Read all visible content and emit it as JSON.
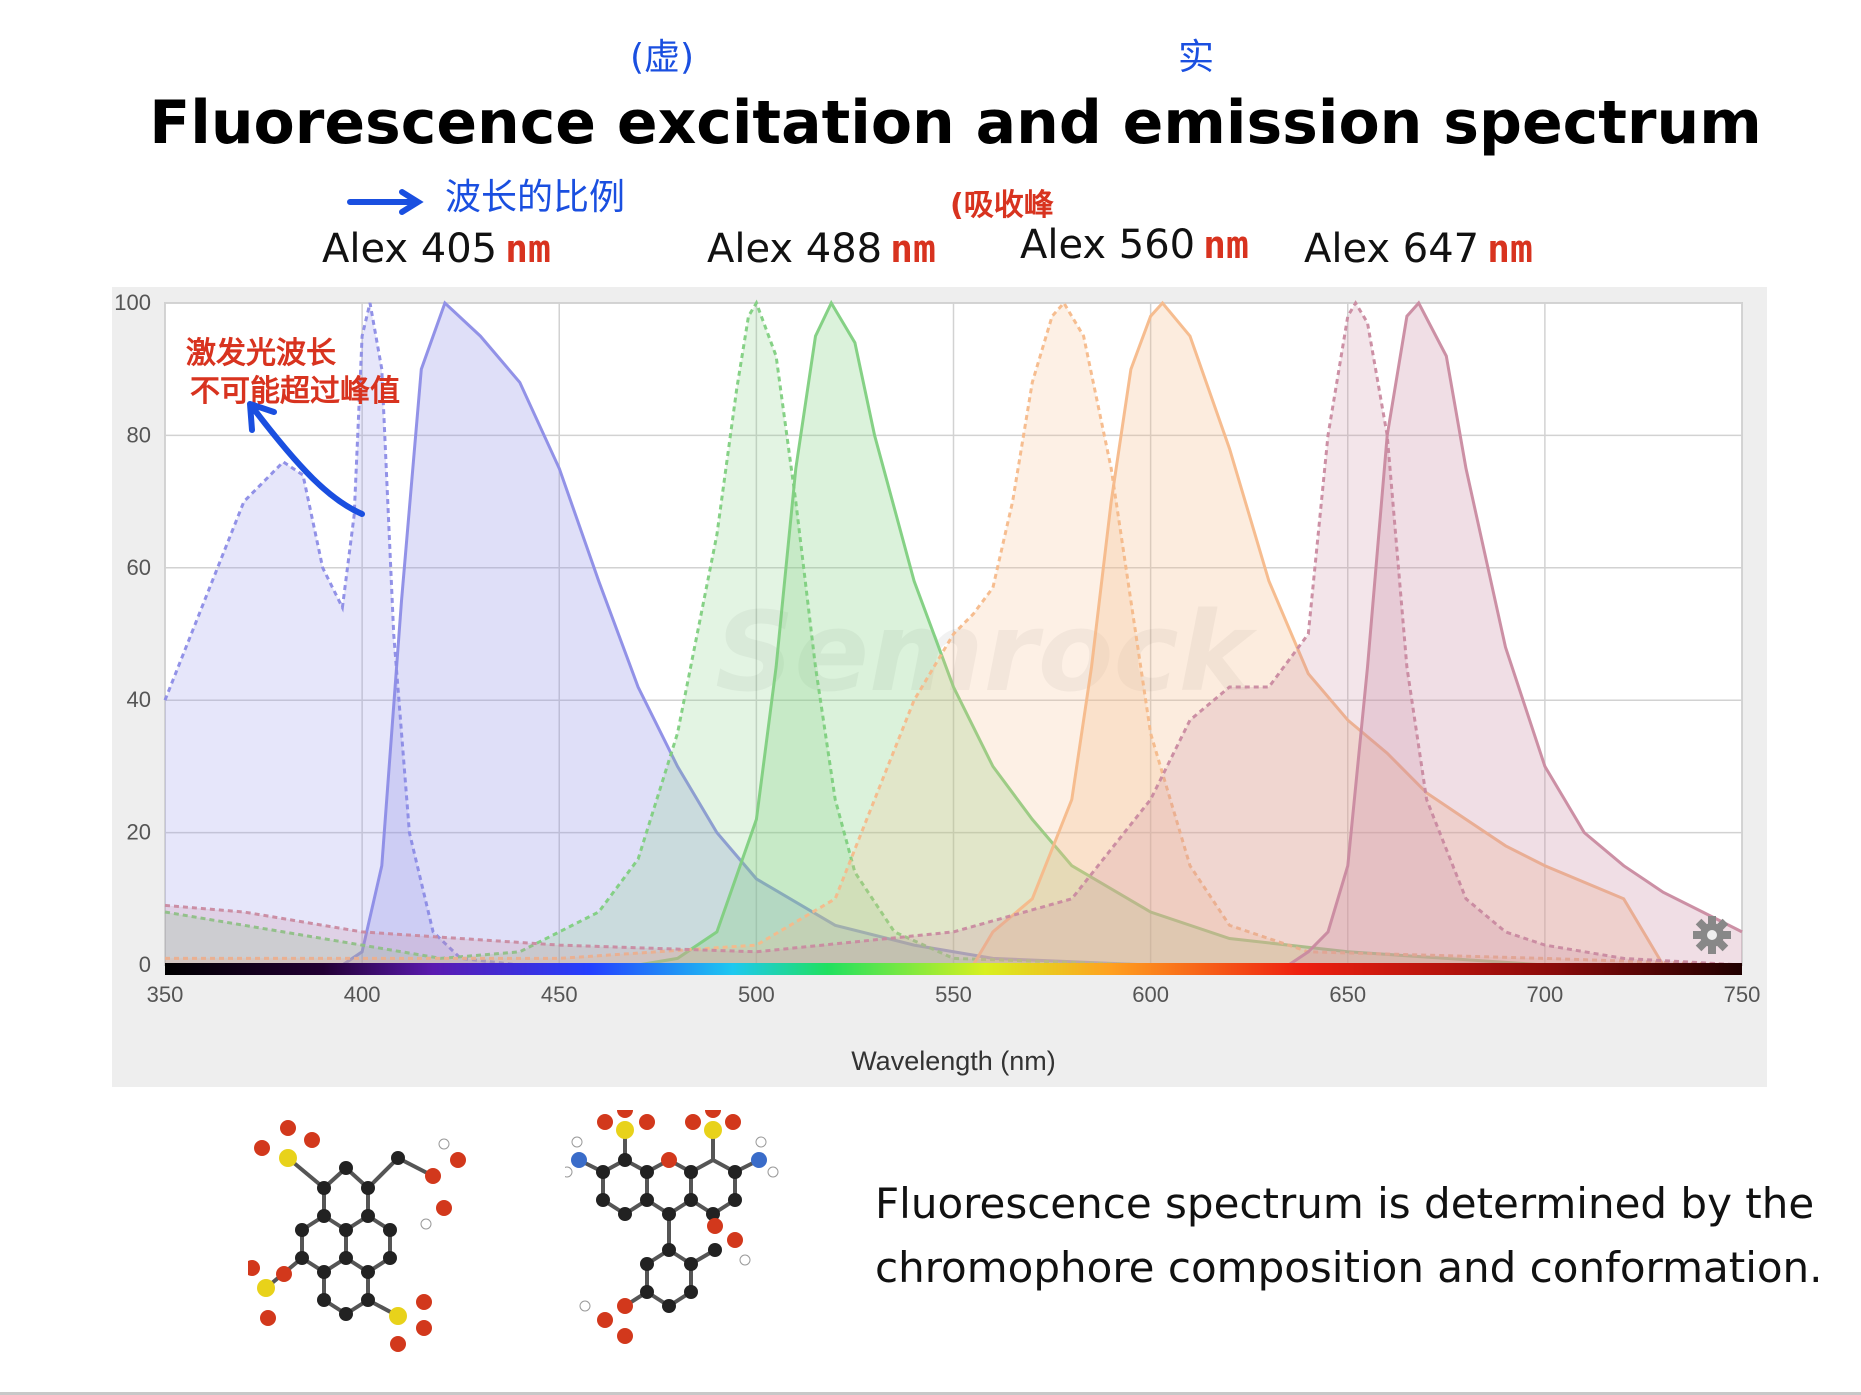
{
  "title": "Fluorescence excitation and emission spectrum",
  "annotations": {
    "title_left": "(虚)",
    "title_right": "实",
    "wavelength_arrow": "波长的比例",
    "absorb_peak": "(吸收峰",
    "excite_note_line1": "激发光波长",
    "excite_note_line2": "不可能超过峰值"
  },
  "dyes": [
    {
      "name": "Alex 405",
      "unit": "nm"
    },
    {
      "name": "Alex 488",
      "unit": "nm"
    },
    {
      "name": "Alex 560",
      "unit": "nm"
    },
    {
      "name": "Alex 647",
      "unit": "nm"
    }
  ],
  "caption": "Fluorescence spectrum is determined by the chromophore composition and conformation.",
  "chart_data": {
    "type": "area",
    "title": "",
    "xlabel": "Wavelength (nm)",
    "ylabel": "",
    "xlim": [
      350,
      750
    ],
    "ylim": [
      0,
      100
    ],
    "x_ticks": [
      "350",
      "400",
      "450",
      "500",
      "550",
      "600",
      "650",
      "700",
      "750"
    ],
    "y_ticks": [
      "0",
      "20",
      "40",
      "60",
      "80",
      "100"
    ],
    "grid": true,
    "legend": "none",
    "watermark": "Semrock",
    "series": [
      {
        "dye": "Alex 405",
        "kind": "excitation",
        "color": "#8c8ce6",
        "dashed": true,
        "points": [
          [
            350,
            40
          ],
          [
            360,
            55
          ],
          [
            370,
            70
          ],
          [
            380,
            76
          ],
          [
            385,
            74
          ],
          [
            390,
            60
          ],
          [
            395,
            54
          ],
          [
            398,
            68
          ],
          [
            400,
            95
          ],
          [
            402,
            100
          ],
          [
            405,
            90
          ],
          [
            408,
            50
          ],
          [
            412,
            20
          ],
          [
            418,
            5
          ],
          [
            425,
            1
          ],
          [
            440,
            0
          ],
          [
            750,
            0
          ]
        ]
      },
      {
        "dye": "Alex 405",
        "kind": "emission",
        "color": "#8c8ce6",
        "dashed": false,
        "points": [
          [
            395,
            0
          ],
          [
            400,
            2
          ],
          [
            405,
            15
          ],
          [
            410,
            55
          ],
          [
            415,
            90
          ],
          [
            421,
            100
          ],
          [
            430,
            95
          ],
          [
            440,
            88
          ],
          [
            450,
            75
          ],
          [
            460,
            58
          ],
          [
            470,
            42
          ],
          [
            480,
            30
          ],
          [
            490,
            20
          ],
          [
            500,
            13
          ],
          [
            520,
            6
          ],
          [
            540,
            3
          ],
          [
            560,
            1
          ],
          [
            600,
            0
          ],
          [
            750,
            0
          ]
        ]
      },
      {
        "dye": "Alex 488",
        "kind": "excitation",
        "color": "#7fcf7f",
        "dashed": true,
        "points": [
          [
            350,
            8
          ],
          [
            380,
            5
          ],
          [
            420,
            1
          ],
          [
            440,
            2
          ],
          [
            460,
            8
          ],
          [
            470,
            16
          ],
          [
            480,
            35
          ],
          [
            490,
            65
          ],
          [
            495,
            87
          ],
          [
            498,
            98
          ],
          [
            500,
            100
          ],
          [
            505,
            92
          ],
          [
            510,
            70
          ],
          [
            515,
            45
          ],
          [
            520,
            25
          ],
          [
            525,
            14
          ],
          [
            535,
            5
          ],
          [
            550,
            1
          ],
          [
            600,
            0
          ],
          [
            750,
            0
          ]
        ]
      },
      {
        "dye": "Alex 488",
        "kind": "emission",
        "color": "#7fcf7f",
        "dashed": false,
        "points": [
          [
            470,
            0
          ],
          [
            480,
            1
          ],
          [
            490,
            5
          ],
          [
            500,
            22
          ],
          [
            505,
            45
          ],
          [
            510,
            75
          ],
          [
            515,
            95
          ],
          [
            519,
            100
          ],
          [
            525,
            94
          ],
          [
            530,
            80
          ],
          [
            540,
            58
          ],
          [
            550,
            42
          ],
          [
            560,
            30
          ],
          [
            570,
            22
          ],
          [
            580,
            15
          ],
          [
            600,
            8
          ],
          [
            620,
            4
          ],
          [
            650,
            2
          ],
          [
            700,
            0
          ],
          [
            750,
            0
          ]
        ]
      },
      {
        "dye": "Alex 560",
        "kind": "excitation",
        "color": "#f5b98a",
        "dashed": true,
        "points": [
          [
            350,
            1
          ],
          [
            450,
            1
          ],
          [
            500,
            3
          ],
          [
            520,
            10
          ],
          [
            530,
            25
          ],
          [
            540,
            40
          ],
          [
            550,
            50
          ],
          [
            555,
            53
          ],
          [
            560,
            57
          ],
          [
            565,
            70
          ],
          [
            570,
            88
          ],
          [
            575,
            98
          ],
          [
            578,
            100
          ],
          [
            583,
            95
          ],
          [
            590,
            75
          ],
          [
            600,
            35
          ],
          [
            610,
            15
          ],
          [
            620,
            6
          ],
          [
            640,
            2
          ],
          [
            700,
            1
          ],
          [
            750,
            0
          ]
        ]
      },
      {
        "dye": "Alex 560",
        "kind": "emission",
        "color": "#f5b98a",
        "dashed": false,
        "points": [
          [
            555,
            0
          ],
          [
            560,
            5
          ],
          [
            570,
            10
          ],
          [
            580,
            25
          ],
          [
            585,
            45
          ],
          [
            590,
            70
          ],
          [
            595,
            90
          ],
          [
            600,
            98
          ],
          [
            603,
            100
          ],
          [
            610,
            95
          ],
          [
            620,
            78
          ],
          [
            630,
            58
          ],
          [
            640,
            44
          ],
          [
            650,
            37
          ],
          [
            660,
            32
          ],
          [
            670,
            26
          ],
          [
            680,
            22
          ],
          [
            690,
            18
          ],
          [
            700,
            15
          ],
          [
            720,
            10
          ],
          [
            725,
            5
          ],
          [
            730,
            0
          ],
          [
            750,
            0
          ]
        ]
      },
      {
        "dye": "Alex 647",
        "kind": "excitation",
        "color": "#c98aa0",
        "dashed": true,
        "points": [
          [
            350,
            9
          ],
          [
            370,
            8
          ],
          [
            400,
            5
          ],
          [
            450,
            3
          ],
          [
            500,
            2
          ],
          [
            550,
            5
          ],
          [
            580,
            10
          ],
          [
            600,
            25
          ],
          [
            610,
            37
          ],
          [
            620,
            42
          ],
          [
            630,
            42
          ],
          [
            640,
            50
          ],
          [
            645,
            80
          ],
          [
            650,
            98
          ],
          [
            652,
            100
          ],
          [
            655,
            97
          ],
          [
            660,
            80
          ],
          [
            665,
            45
          ],
          [
            670,
            25
          ],
          [
            680,
            10
          ],
          [
            690,
            5
          ],
          [
            700,
            3
          ],
          [
            720,
            1
          ],
          [
            750,
            0
          ]
        ]
      },
      {
        "dye": "Alex 647",
        "kind": "emission",
        "color": "#c98aa0",
        "dashed": false,
        "points": [
          [
            635,
            0
          ],
          [
            640,
            2
          ],
          [
            645,
            5
          ],
          [
            650,
            15
          ],
          [
            655,
            45
          ],
          [
            660,
            80
          ],
          [
            665,
            98
          ],
          [
            668,
            100
          ],
          [
            675,
            92
          ],
          [
            680,
            75
          ],
          [
            690,
            48
          ],
          [
            700,
            30
          ],
          [
            710,
            20
          ],
          [
            720,
            15
          ],
          [
            730,
            11
          ],
          [
            740,
            8
          ],
          [
            750,
            5
          ]
        ]
      }
    ]
  }
}
